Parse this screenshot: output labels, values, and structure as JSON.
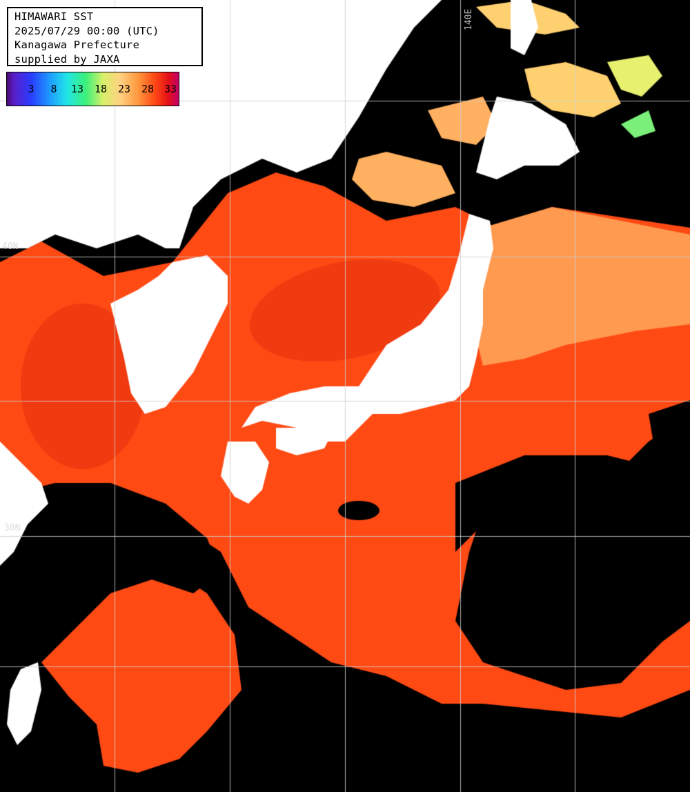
{
  "title": {
    "lines": [
      "HIMAWARI SST",
      "2025/07/29 00:00 (UTC)",
      "Kanagawa Prefecture",
      "supplied by JAXA"
    ]
  },
  "legend": {
    "ticks": [
      "3",
      "8",
      "13",
      "18",
      "23",
      "28",
      "33"
    ],
    "colors": [
      "#4a0a6e",
      "#2a3cff",
      "#21e6e8",
      "#3cf07a",
      "#ffd080",
      "#ff4a14",
      "#c0006a"
    ]
  },
  "gridlabels": {
    "lat40": "40N",
    "lat30": "30N",
    "lon140": "140E"
  },
  "colors": {
    "ocean_warm": "#ff4a14",
    "ocean_cool": "#ff9a50",
    "land": "#ffffff",
    "cloud": "#000000",
    "grid": "#cfcfcf"
  }
}
